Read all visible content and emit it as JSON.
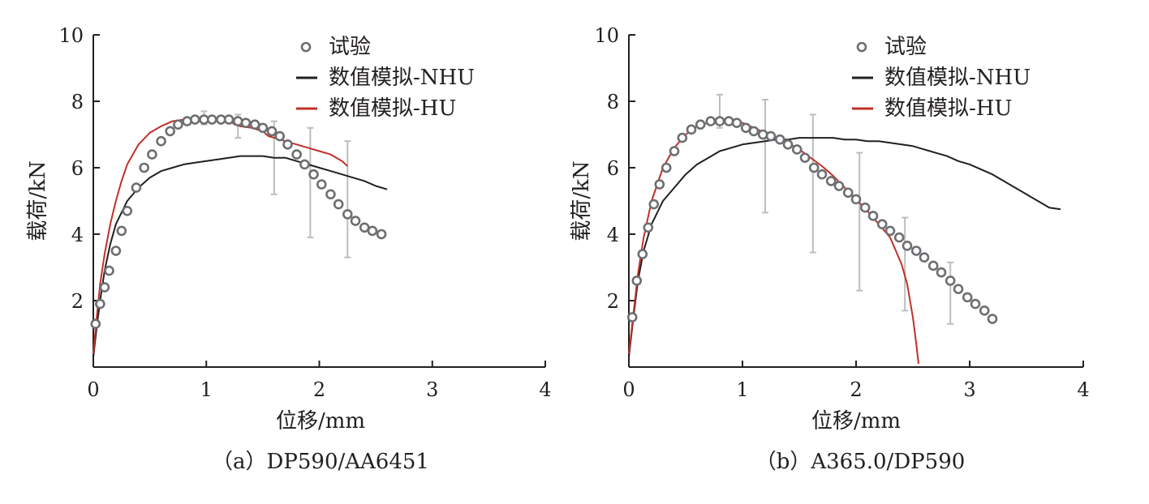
{
  "colors": {
    "axis": "#231f20",
    "nhu": "#231f20",
    "hu": "#c0302a",
    "test_marker": "#6d6e71",
    "errorbar": "#bdbdbd"
  },
  "chart_data": [
    {
      "type": "line",
      "caption": "（a）DP590/AA6451",
      "xlabel": "位移/mm",
      "ylabel": "载荷/kN",
      "xlim": [
        0,
        4
      ],
      "ylim": [
        0,
        10
      ],
      "xticks": [
        0,
        1,
        2,
        3,
        4
      ],
      "yticks": [
        2,
        4,
        6,
        8,
        10
      ],
      "legend_position": "top-right",
      "series": [
        {
          "name": "试验",
          "kind": "marker",
          "x": [
            0.02,
            0.06,
            0.1,
            0.14,
            0.2,
            0.25,
            0.3,
            0.38,
            0.45,
            0.52,
            0.6,
            0.68,
            0.75,
            0.83,
            0.9,
            0.98,
            1.05,
            1.13,
            1.2,
            1.28,
            1.35,
            1.43,
            1.5,
            1.58,
            1.65,
            1.72,
            1.8,
            1.87,
            1.95,
            2.02,
            2.1,
            2.17,
            2.25,
            2.32,
            2.4,
            2.47,
            2.55
          ],
          "y": [
            1.3,
            1.9,
            2.4,
            2.9,
            3.5,
            4.1,
            4.7,
            5.4,
            6.0,
            6.4,
            6.8,
            7.1,
            7.3,
            7.4,
            7.45,
            7.45,
            7.45,
            7.45,
            7.45,
            7.4,
            7.35,
            7.3,
            7.2,
            7.1,
            6.95,
            6.7,
            6.4,
            6.1,
            5.8,
            5.5,
            5.2,
            4.9,
            4.6,
            4.4,
            4.2,
            4.1,
            4.0
          ]
        },
        {
          "name": "数值模拟-NHU",
          "kind": "line",
          "x": [
            0,
            0.03,
            0.06,
            0.1,
            0.15,
            0.2,
            0.3,
            0.4,
            0.5,
            0.6,
            0.7,
            0.8,
            0.9,
            1.0,
            1.1,
            1.2,
            1.3,
            1.4,
            1.5,
            1.6,
            1.7,
            1.8,
            1.9,
            2.0,
            2.1,
            2.2,
            2.3,
            2.4,
            2.5,
            2.6
          ],
          "y": [
            0.3,
            1.2,
            2.0,
            2.9,
            3.7,
            4.3,
            5.0,
            5.4,
            5.7,
            5.9,
            6.0,
            6.1,
            6.15,
            6.2,
            6.25,
            6.3,
            6.35,
            6.35,
            6.35,
            6.3,
            6.3,
            6.2,
            6.1,
            6.0,
            5.9,
            5.8,
            5.7,
            5.6,
            5.45,
            5.35
          ]
        },
        {
          "name": "数值模拟-HU",
          "kind": "line",
          "x": [
            0,
            0.03,
            0.06,
            0.1,
            0.15,
            0.2,
            0.25,
            0.3,
            0.4,
            0.5,
            0.6,
            0.7,
            0.8,
            0.9,
            1.0,
            1.1,
            1.2,
            1.25,
            1.3,
            1.4,
            1.5,
            1.55,
            1.6,
            1.7,
            1.8,
            1.9,
            2.0,
            2.1,
            2.2,
            2.25
          ],
          "y": [
            0.4,
            1.5,
            2.5,
            3.4,
            4.3,
            5.0,
            5.6,
            6.1,
            6.7,
            7.05,
            7.25,
            7.4,
            7.45,
            7.5,
            7.5,
            7.45,
            7.45,
            7.3,
            7.25,
            7.2,
            7.1,
            6.95,
            6.9,
            6.8,
            6.7,
            6.6,
            6.5,
            6.4,
            6.2,
            6.05
          ]
        }
      ],
      "error_bars": [
        {
          "x": 0.98,
          "low": 7.3,
          "high": 7.7
        },
        {
          "x": 1.28,
          "low": 6.9,
          "high": 7.6
        },
        {
          "x": 1.6,
          "low": 5.2,
          "high": 7.4
        },
        {
          "x": 1.92,
          "low": 3.9,
          "high": 7.2
        },
        {
          "x": 2.25,
          "low": 3.3,
          "high": 6.8
        }
      ]
    },
    {
      "type": "line",
      "caption": "（b）A365.0/DP590",
      "xlabel": "位移/mm",
      "ylabel": "载荷/kN",
      "xlim": [
        0,
        4
      ],
      "ylim": [
        0,
        10
      ],
      "xticks": [
        0,
        1,
        2,
        3,
        4
      ],
      "yticks": [
        2,
        4,
        6,
        8,
        10
      ],
      "legend_position": "top-right",
      "series": [
        {
          "name": "试验",
          "kind": "marker",
          "x": [
            0.03,
            0.07,
            0.12,
            0.17,
            0.22,
            0.27,
            0.33,
            0.4,
            0.47,
            0.55,
            0.63,
            0.72,
            0.8,
            0.88,
            0.95,
            1.03,
            1.1,
            1.18,
            1.25,
            1.33,
            1.4,
            1.48,
            1.55,
            1.63,
            1.7,
            1.78,
            1.85,
            1.93,
            2.0,
            2.08,
            2.15,
            2.23,
            2.3,
            2.38,
            2.45,
            2.53,
            2.6,
            2.68,
            2.75,
            2.83,
            2.9,
            2.98,
            3.05,
            3.13,
            3.2
          ],
          "y": [
            1.5,
            2.6,
            3.4,
            4.2,
            4.9,
            5.5,
            6.0,
            6.5,
            6.9,
            7.15,
            7.3,
            7.4,
            7.4,
            7.4,
            7.35,
            7.2,
            7.1,
            7.0,
            6.95,
            6.85,
            6.7,
            6.55,
            6.3,
            6.0,
            5.8,
            5.6,
            5.45,
            5.25,
            5.05,
            4.8,
            4.55,
            4.3,
            4.1,
            3.9,
            3.65,
            3.5,
            3.3,
            3.05,
            2.85,
            2.6,
            2.35,
            2.1,
            1.9,
            1.7,
            1.45
          ]
        },
        {
          "name": "数值模拟-NHU",
          "kind": "line",
          "x": [
            0,
            0.04,
            0.08,
            0.13,
            0.2,
            0.3,
            0.4,
            0.5,
            0.6,
            0.7,
            0.8,
            0.9,
            1.0,
            1.1,
            1.2,
            1.3,
            1.4,
            1.5,
            1.6,
            1.7,
            1.8,
            1.9,
            2.0,
            2.1,
            2.2,
            2.3,
            2.4,
            2.5,
            2.6,
            2.7,
            2.8,
            2.9,
            3.0,
            3.1,
            3.2,
            3.3,
            3.4,
            3.5,
            3.6,
            3.7,
            3.8
          ],
          "y": [
            0.3,
            1.5,
            2.6,
            3.5,
            4.3,
            5.0,
            5.4,
            5.8,
            6.1,
            6.3,
            6.5,
            6.6,
            6.7,
            6.75,
            6.8,
            6.85,
            6.85,
            6.9,
            6.9,
            6.9,
            6.9,
            6.85,
            6.85,
            6.8,
            6.8,
            6.75,
            6.7,
            6.65,
            6.55,
            6.45,
            6.35,
            6.2,
            6.1,
            5.95,
            5.8,
            5.6,
            5.4,
            5.2,
            5.0,
            4.8,
            4.75
          ]
        },
        {
          "name": "数值模拟-HU",
          "kind": "line",
          "x": [
            0,
            0.04,
            0.08,
            0.13,
            0.2,
            0.3,
            0.4,
            0.5,
            0.6,
            0.7,
            0.8,
            0.9,
            1.0,
            1.1,
            1.2,
            1.3,
            1.4,
            1.5,
            1.6,
            1.7,
            1.8,
            1.9,
            2.0,
            2.1,
            2.2,
            2.3,
            2.35,
            2.4,
            2.45,
            2.5,
            2.53,
            2.55
          ],
          "y": [
            0.4,
            1.6,
            2.8,
            3.9,
            5.0,
            6.0,
            6.6,
            7.0,
            7.25,
            7.35,
            7.4,
            7.4,
            7.35,
            7.2,
            7.05,
            6.9,
            6.75,
            6.55,
            6.3,
            6.05,
            5.75,
            5.4,
            5.05,
            4.7,
            4.3,
            3.9,
            3.5,
            3.1,
            2.5,
            1.5,
            0.7,
            0.1
          ]
        }
      ],
      "error_bars": [
        {
          "x": 0.8,
          "low": 7.2,
          "high": 8.2
        },
        {
          "x": 1.2,
          "low": 4.65,
          "high": 8.05
        },
        {
          "x": 1.62,
          "low": 3.45,
          "high": 7.6
        },
        {
          "x": 2.03,
          "low": 2.3,
          "high": 6.45
        },
        {
          "x": 2.43,
          "low": 1.7,
          "high": 4.5
        },
        {
          "x": 2.83,
          "low": 1.3,
          "high": 3.15
        }
      ]
    }
  ]
}
